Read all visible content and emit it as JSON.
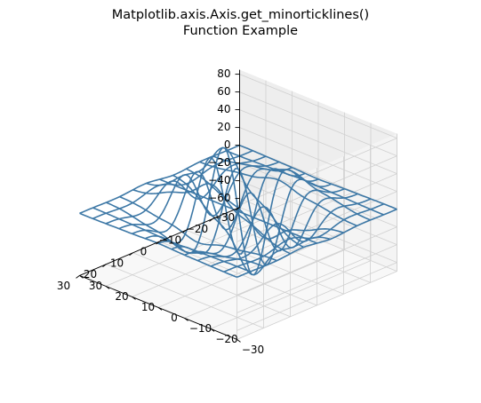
{
  "chart_data": {
    "type": "wireframe-3d",
    "title": "Matplotlib.axis.Axis.get_minorticklines()\nFunction Example",
    "title_lines": [
      "Matplotlib.axis.Axis.get_minorticklines()",
      "Function Example"
    ],
    "x_ticks": [
      -30,
      -20,
      -10,
      0,
      10,
      20,
      30
    ],
    "y_ticks": [
      -30,
      -20,
      -10,
      0,
      10,
      20,
      30
    ],
    "z_ticks": [
      80,
      60,
      40,
      20,
      0,
      -20,
      -40,
      -60
    ],
    "xlim": [
      -30,
      30
    ],
    "ylim": [
      -30,
      30
    ],
    "zlim": [
      -70,
      85
    ],
    "view": {
      "elev": 30,
      "azim": -60
    },
    "grid": true,
    "series": [
      {
        "surface": "Z = X * exp(-(X^2 + Y^2)/200) rippled",
        "grid_x": [
          -30,
          -25,
          -20,
          -15,
          -10,
          -5,
          0,
          5,
          10,
          15,
          20,
          25,
          30
        ],
        "grid_y": [
          -30,
          -25,
          -20,
          -15,
          -10,
          -5,
          0,
          5,
          10,
          15,
          20,
          25,
          30
        ],
        "z_min": -65,
        "z_max": 78
      }
    ],
    "colors": {
      "wire": "#3d78a6",
      "pane": "#f2f2f2",
      "grid": "#d0d0d0"
    }
  }
}
